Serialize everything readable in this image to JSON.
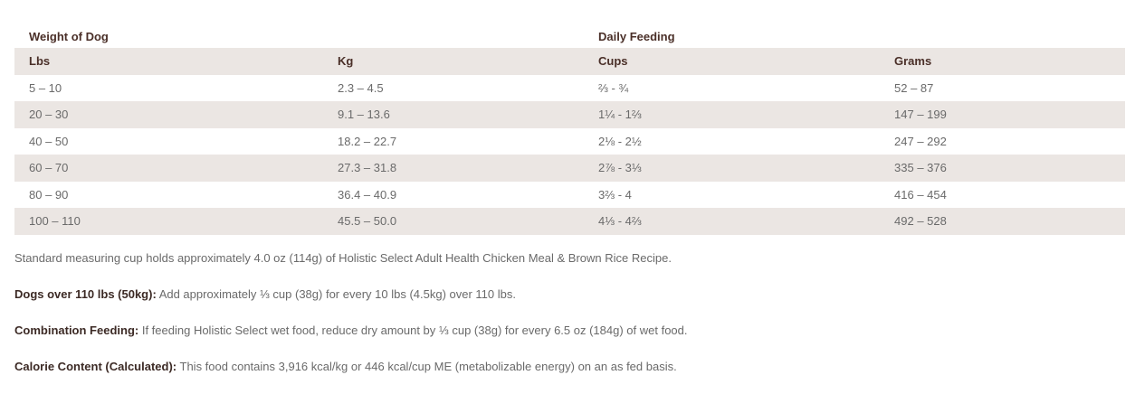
{
  "table": {
    "group_headers": [
      "Weight of Dog",
      "Daily Feeding"
    ],
    "headers": [
      "Lbs",
      "Kg",
      "Cups",
      "Grams"
    ],
    "rows": [
      [
        "5 – 10",
        "2.3 – 4.5",
        "⅔ - ¾",
        "52 – 87"
      ],
      [
        "20 – 30",
        "9.1 – 13.6",
        "1¼ - 1⅔",
        "147 – 199"
      ],
      [
        "40 – 50",
        "18.2 – 22.7",
        "2⅛ - 2½",
        "247 – 292"
      ],
      [
        "60 – 70",
        "27.3 – 31.8",
        "2⅞ - 3⅓",
        "335 – 376"
      ],
      [
        "80 – 90",
        "36.4 – 40.9",
        "3⅔ - 4",
        "416 – 454"
      ],
      [
        "100 – 110",
        "45.5 – 50.0",
        "4⅓ - 4⅔",
        "492 – 528"
      ]
    ]
  },
  "notes": [
    {
      "text": "Standard measuring cup holds approximately 4.0 oz (114g) of Holistic Select Adult Health Chicken Meal & Brown Rice Recipe."
    },
    {
      "label": "Dogs over 110 lbs (50kg):",
      "text": "Add approximately ⅓ cup (38g) for every 10 lbs (4.5kg) over 110 lbs."
    },
    {
      "label": "Combination Feeding:",
      "text": "If feeding Holistic Select wet food, reduce dry amount by ⅓ cup (38g) for every 6.5 oz (184g) of wet food."
    },
    {
      "label": "Calorie Content (Calculated):",
      "text": "This food contains 3,916 kcal/kg or 446 kcal/cup ME (metabolizable energy) on an as fed basis."
    }
  ]
}
